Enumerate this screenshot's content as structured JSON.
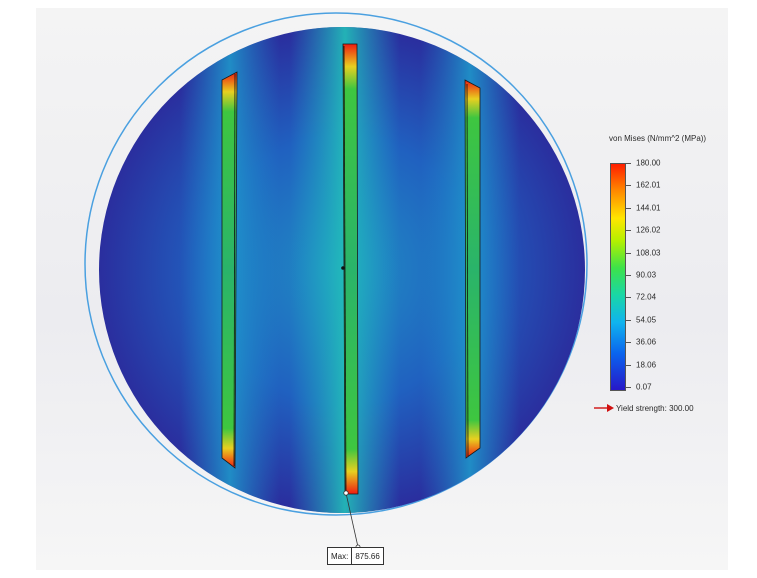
{
  "legend": {
    "title": "von Mises (N/mm^2 (MPa))",
    "ticks": [
      "180.00",
      "162.01",
      "144.01",
      "126.02",
      "108.03",
      "90.03",
      "72.04",
      "54.05",
      "36.06",
      "18.06",
      "0.07"
    ],
    "colors": [
      "#ff1e00",
      "#ff8a00",
      "#ffe600",
      "#b4f000",
      "#3de24a",
      "#19d7a6",
      "#10b4ee",
      "#0a63ee",
      "#2718c8"
    ]
  },
  "yield": {
    "label": "Yield strength: 300.00",
    "arrow_color": "#d01010",
    "icon": "red-arrow-icon"
  },
  "max_probe": {
    "label": "Max:",
    "value": "875.66"
  },
  "model": {
    "ring_color": "#4aa0e0",
    "plate_base_color": "#2a3ea8",
    "slot_count": 3
  }
}
